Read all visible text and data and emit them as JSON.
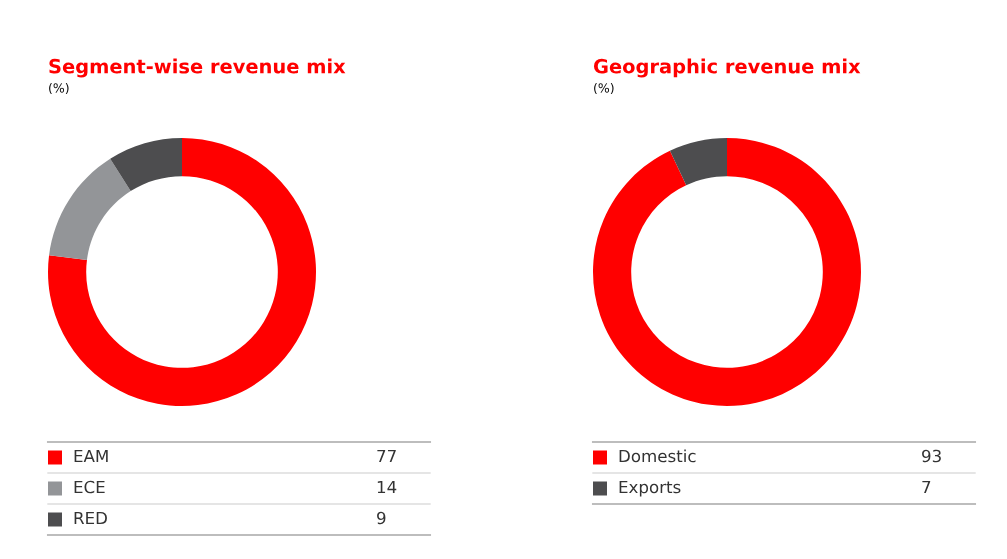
{
  "chart_data": [
    {
      "type": "donut",
      "title": "Segment-wise revenue mix",
      "subtitle": "(%)",
      "categories": [
        "EAM",
        "ECE",
        "RED"
      ],
      "values": [
        77,
        14,
        9
      ],
      "colors": [
        "#ff0000",
        "#939598",
        "#4d4d4f"
      ],
      "legend": "bottom",
      "data_labels": true
    },
    {
      "type": "donut",
      "title": "Geographic revenue mix",
      "subtitle": "(%)",
      "categories": [
        "Domestic",
        "Exports"
      ],
      "values": [
        93,
        7
      ],
      "colors": [
        "#ff0000",
        "#4d4d4f"
      ],
      "legend": "bottom",
      "data_labels": true
    }
  ]
}
